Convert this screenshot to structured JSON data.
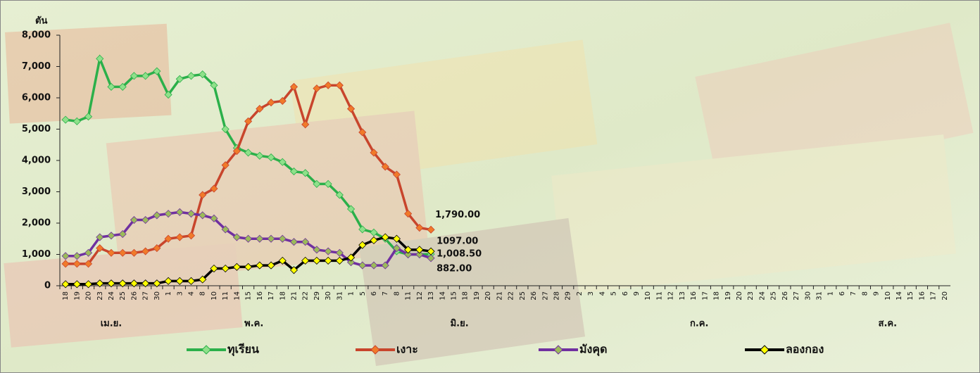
{
  "chart_data": {
    "type": "line",
    "y_label": "ตัน",
    "categories": [
      "18",
      "19",
      "20",
      "23",
      "24",
      "25",
      "26",
      "27",
      "30",
      "1",
      "3",
      "4",
      "8",
      "10",
      "11",
      "14",
      "15",
      "16",
      "17",
      "18",
      "21",
      "22",
      "29",
      "30",
      "31",
      "1",
      "5",
      "6",
      "7",
      "8",
      "11",
      "12",
      "13",
      "14",
      "15",
      "18",
      "19",
      "20",
      "21",
      "22",
      "25",
      "26",
      "27",
      "28",
      "29",
      "2",
      "3",
      "4",
      "5",
      "6",
      "9",
      "10",
      "11",
      "12",
      "13",
      "16",
      "17",
      "18",
      "19",
      "20",
      "23",
      "24",
      "25",
      "26",
      "27",
      "30",
      "31",
      "1",
      "6",
      "7",
      "8",
      "9",
      "10",
      "14",
      "15",
      "16",
      "17",
      "20"
    ],
    "x_groups": [
      {
        "label": "เม.ย.",
        "from": 0,
        "to": 8
      },
      {
        "label": "พ.ค.",
        "from": 9,
        "to": 24
      },
      {
        "label": "มิ.ย.",
        "from": 25,
        "to": 44
      },
      {
        "label": "ก.ค.",
        "from": 45,
        "to": 66
      },
      {
        "label": "ส.ค.",
        "from": 67,
        "to": 77
      }
    ],
    "series": [
      {
        "name": "ทุเรียน",
        "color": "#2bb04a",
        "marker_color": "#8fe08a",
        "values": [
          5300,
          5250,
          5400,
          7250,
          6350,
          6350,
          6700,
          6700,
          6850,
          6100,
          6600,
          6700,
          6750,
          6400,
          5000,
          4400,
          4250,
          4150,
          4100,
          3950,
          3650,
          3600,
          3250,
          3250,
          2900,
          2450,
          1800,
          1700,
          1500,
          1100,
          1000,
          1000,
          1008.5,
          null,
          null,
          null,
          null,
          null,
          null,
          null,
          null,
          null,
          null,
          null,
          null,
          null,
          null,
          null,
          null,
          null,
          null,
          null,
          null,
          null,
          null,
          null,
          null,
          null,
          null,
          null,
          null,
          null,
          null,
          null,
          null,
          null,
          null,
          null,
          null,
          null,
          null,
          null,
          null,
          null,
          null,
          null,
          null,
          null
        ],
        "value_labels": [
          null,
          null,
          null,
          null,
          null,
          null,
          null,
          null,
          null,
          null,
          null,
          null,
          null,
          null,
          null,
          null,
          null,
          null,
          null,
          null,
          null,
          null,
          null,
          null,
          null,
          null,
          null,
          null,
          null,
          null,
          null,
          null,
          "1,008.50",
          null,
          null,
          null,
          null,
          null,
          null,
          null,
          null,
          null,
          null,
          null,
          null,
          null,
          null,
          null,
          null,
          null,
          null,
          null,
          null,
          null,
          null,
          null,
          null,
          null,
          null,
          null,
          null,
          null,
          null,
          null,
          null,
          null,
          null,
          null,
          null,
          null,
          null,
          null,
          null,
          null,
          null,
          null,
          null,
          null
        ]
      },
      {
        "name": "เงาะ",
        "color": "#c8452c",
        "marker_color": "#f07a2a",
        "values": [
          700,
          700,
          700,
          1200,
          1050,
          1050,
          1050,
          1100,
          1200,
          1500,
          1550,
          1600,
          2900,
          3100,
          3850,
          4300,
          5250,
          5650,
          5850,
          5900,
          6350,
          5150,
          6300,
          6400,
          6400,
          5650,
          4900,
          4250,
          3800,
          3550,
          2300,
          1850,
          1790,
          null,
          null,
          null,
          null,
          null,
          null,
          null,
          null,
          null,
          null,
          null,
          null,
          null,
          null,
          null,
          null,
          null,
          null,
          null,
          null,
          null,
          null,
          null,
          null,
          null,
          null,
          null,
          null,
          null,
          null,
          null,
          null,
          null,
          null,
          null,
          null,
          null,
          null,
          null,
          null,
          null,
          null,
          null,
          null,
          null
        ],
        "value_labels": [
          null,
          null,
          null,
          null,
          null,
          null,
          null,
          null,
          null,
          null,
          null,
          null,
          null,
          null,
          null,
          null,
          null,
          null,
          null,
          null,
          null,
          null,
          null,
          null,
          null,
          null,
          null,
          null,
          null,
          null,
          null,
          null,
          "1,790.00",
          null,
          null,
          null,
          null,
          null,
          null,
          null,
          null,
          null,
          null,
          null,
          null,
          null,
          null,
          null,
          null,
          null,
          null,
          null,
          null,
          null,
          null,
          null,
          null,
          null,
          null,
          null,
          null,
          null,
          null,
          null,
          null,
          null,
          null,
          null,
          null,
          null,
          null,
          null,
          null,
          null,
          null,
          null,
          null,
          null
        ]
      },
      {
        "name": "มังคุด",
        "color": "#7030a0",
        "marker_color": "#9bbb59",
        "values": [
          950,
          950,
          1050,
          1550,
          1600,
          1650,
          2100,
          2100,
          2250,
          2300,
          2350,
          2300,
          2250,
          2150,
          1800,
          1550,
          1500,
          1500,
          1500,
          1500,
          1400,
          1400,
          1150,
          1100,
          1050,
          750,
          650,
          650,
          650,
          1200,
          1000,
          1000,
          882,
          null,
          null,
          null,
          null,
          null,
          null,
          null,
          null,
          null,
          null,
          null,
          null,
          null,
          null,
          null,
          null,
          null,
          null,
          null,
          null,
          null,
          null,
          null,
          null,
          null,
          null,
          null,
          null,
          null,
          null,
          null,
          null,
          null,
          null,
          null,
          null,
          null,
          null,
          null,
          null,
          null,
          null,
          null,
          null,
          null
        ],
        "value_labels": [
          null,
          null,
          null,
          null,
          null,
          null,
          null,
          null,
          null,
          null,
          null,
          null,
          null,
          null,
          null,
          null,
          null,
          null,
          null,
          null,
          null,
          null,
          null,
          null,
          null,
          null,
          null,
          null,
          null,
          null,
          null,
          null,
          "882.00",
          null,
          null,
          null,
          null,
          null,
          null,
          null,
          null,
          null,
          null,
          null,
          null,
          null,
          null,
          null,
          null,
          null,
          null,
          null,
          null,
          null,
          null,
          null,
          null,
          null,
          null,
          null,
          null,
          null,
          null,
          null,
          null,
          null,
          null,
          null,
          null,
          null,
          null,
          null,
          null,
          null,
          null,
          null,
          null,
          null
        ]
      },
      {
        "name": "ลองกอง",
        "color": "#000000",
        "marker_color": "#ffff00",
        "values": [
          50,
          50,
          50,
          75,
          75,
          75,
          75,
          75,
          75,
          150,
          150,
          150,
          200,
          550,
          550,
          600,
          600,
          650,
          650,
          800,
          500,
          800,
          800,
          800,
          800,
          900,
          1300,
          1450,
          1550,
          1500,
          1150,
          1150,
          1097,
          null,
          null,
          null,
          null,
          null,
          null,
          null,
          null,
          null,
          null,
          null,
          null,
          null,
          null,
          null,
          null,
          null,
          null,
          null,
          null,
          null,
          null,
          null,
          null,
          null,
          null,
          null,
          null,
          null,
          null,
          null,
          null,
          null,
          null,
          null,
          null,
          null,
          null,
          null,
          null,
          null,
          null,
          null,
          null,
          null
        ],
        "value_labels": [
          null,
          null,
          null,
          null,
          null,
          null,
          null,
          null,
          null,
          null,
          null,
          null,
          null,
          null,
          null,
          null,
          null,
          null,
          null,
          null,
          null,
          null,
          null,
          null,
          null,
          null,
          null,
          null,
          null,
          null,
          null,
          null,
          "1097.00",
          null,
          null,
          null,
          null,
          null,
          null,
          null,
          null,
          null,
          null,
          null,
          null,
          null,
          null,
          null,
          null,
          null,
          null,
          null,
          null,
          null,
          null,
          null,
          null,
          null,
          null,
          null,
          null,
          null,
          null,
          null,
          null,
          null,
          null,
          null,
          null,
          null,
          null,
          null,
          null,
          null,
          null,
          null,
          null,
          null
        ]
      }
    ],
    "ylim": [
      0,
      8000
    ],
    "yticks": [
      0,
      {
        "value": 1000,
        "label": "1,000"
      },
      {
        "value": 2000,
        "label": "2,000"
      },
      {
        "value": 3000,
        "label": "3,000"
      },
      {
        "value": 4000,
        "label": "4,000"
      },
      {
        "value": 5000,
        "label": "5,000"
      },
      {
        "value": 6000,
        "label": "6,000"
      },
      {
        "value": 7000,
        "label": "7,000"
      },
      {
        "value": 8000,
        "label": "8,000"
      }
    ],
    "legend": "bottom"
  }
}
